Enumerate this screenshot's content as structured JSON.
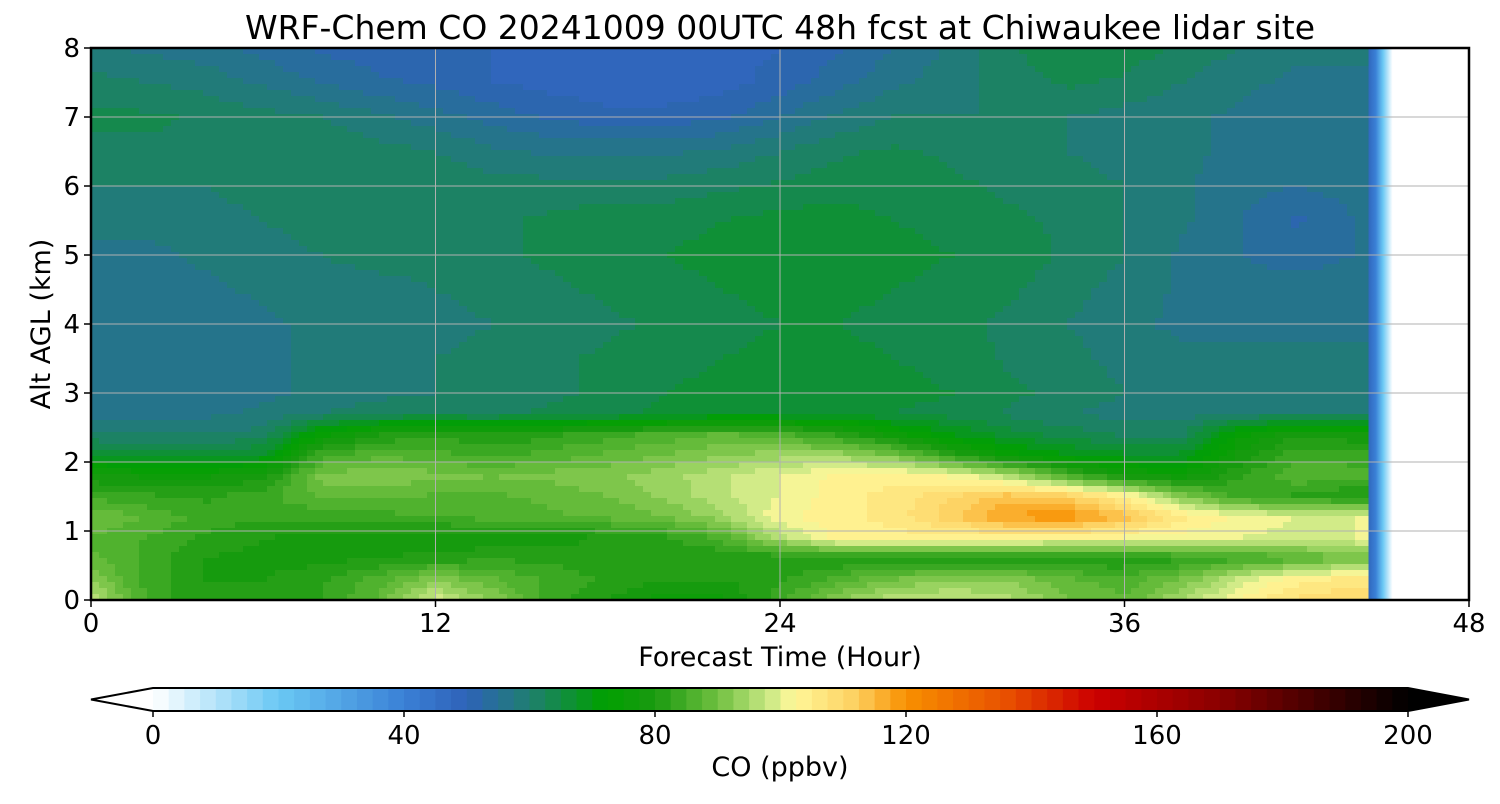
{
  "chart_data": {
    "type": "heatmap",
    "title": "WRF-Chem CO  20241009 00UTC 48h fcst at Chiwaukee lidar site",
    "xlabel": "Forecast Time (Hour)",
    "ylabel": "Alt AGL (km)",
    "xlim": [
      0,
      48
    ],
    "ylim": [
      0,
      8
    ],
    "xticks": [
      0,
      12,
      24,
      36,
      48
    ],
    "yticks": [
      0,
      1,
      2,
      3,
      4,
      5,
      6,
      7,
      8
    ],
    "grid": true,
    "data_end_hour": 44.5,
    "colorbar": {
      "label": "CO  (ppbv)",
      "range": [
        0,
        200
      ],
      "ticks": [
        0,
        40,
        80,
        120,
        160,
        200
      ],
      "extend": "both",
      "orientation": "horizontal",
      "position": "bottom",
      "stops": [
        {
          "v": 0,
          "color": "#ffffff"
        },
        {
          "v": 20,
          "color": "#6ac8f4"
        },
        {
          "v": 40,
          "color": "#3a80d6"
        },
        {
          "v": 50,
          "color": "#2e62b8"
        },
        {
          "v": 60,
          "color": "#1f7f70"
        },
        {
          "v": 72,
          "color": "#00a000"
        },
        {
          "v": 80,
          "color": "#1a9a10"
        },
        {
          "v": 90,
          "color": "#70c040"
        },
        {
          "v": 98,
          "color": "#c8e884"
        },
        {
          "v": 102,
          "color": "#fff89a"
        },
        {
          "v": 112,
          "color": "#fdd060"
        },
        {
          "v": 120,
          "color": "#f89000"
        },
        {
          "v": 136,
          "color": "#e85000"
        },
        {
          "v": 150,
          "color": "#cc0000"
        },
        {
          "v": 170,
          "color": "#8a0000"
        },
        {
          "v": 200,
          "color": "#000000"
        }
      ]
    },
    "x": [
      0,
      2,
      4,
      6,
      8,
      10,
      12,
      14,
      16,
      18,
      20,
      22,
      24,
      26,
      28,
      30,
      32,
      34,
      36,
      38,
      40,
      42,
      44
    ],
    "y": [
      0,
      0.3,
      0.6,
      0.9,
      1.2,
      1.5,
      1.8,
      2.1,
      2.4,
      2.7,
      3.0,
      3.5,
      4.0,
      4.5,
      5.0,
      5.5,
      6.0,
      6.5,
      7.0,
      7.5,
      8.0
    ],
    "z": [
      [
        97,
        84,
        80,
        80,
        82,
        88,
        99,
        92,
        84,
        80,
        76,
        77,
        84,
        92,
        97,
        98,
        96,
        90,
        88,
        95,
        103,
        108,
        110
      ],
      [
        92,
        84,
        80,
        80,
        82,
        86,
        92,
        88,
        84,
        82,
        80,
        80,
        82,
        86,
        90,
        92,
        92,
        88,
        86,
        90,
        98,
        104,
        106
      ],
      [
        88,
        84,
        80,
        79,
        79,
        80,
        81,
        82,
        82,
        81,
        80,
        80,
        80,
        80,
        80,
        80,
        80,
        79,
        80,
        82,
        84,
        86,
        90
      ],
      [
        87,
        85,
        82,
        80,
        79,
        78,
        78,
        78,
        79,
        80,
        82,
        86,
        96,
        104,
        104,
        104,
        104,
        103,
        102,
        101,
        100,
        99,
        100
      ],
      [
        90,
        87,
        84,
        83,
        83,
        84,
        85,
        86,
        87,
        88,
        90,
        94,
        102,
        104,
        106,
        112,
        118,
        120,
        114,
        106,
        102,
        100,
        100
      ],
      [
        84,
        83,
        82,
        84,
        88,
        88,
        87,
        87,
        88,
        90,
        93,
        97,
        100,
        104,
        106,
        110,
        114,
        112,
        104,
        92,
        84,
        82,
        80
      ],
      [
        78,
        77,
        77,
        79,
        91,
        92,
        91,
        90,
        91,
        92,
        94,
        97,
        100,
        103,
        104,
        102,
        96,
        86,
        78,
        76,
        82,
        87,
        86
      ],
      [
        68,
        67,
        66,
        68,
        84,
        87,
        86,
        84,
        86,
        88,
        90,
        92,
        94,
        94,
        90,
        82,
        74,
        70,
        68,
        68,
        78,
        84,
        84
      ],
      [
        60,
        60,
        60,
        61,
        74,
        80,
        82,
        80,
        82,
        84,
        86,
        88,
        86,
        82,
        76,
        70,
        66,
        64,
        62,
        62,
        74,
        80,
        78
      ],
      [
        56,
        56,
        57,
        58,
        60,
        62,
        62,
        62,
        63,
        64,
        66,
        67,
        67,
        67,
        65,
        64,
        62,
        60,
        59,
        59,
        60,
        60,
        60
      ],
      [
        55,
        55,
        56,
        57,
        58,
        59,
        60,
        61,
        62,
        63,
        65,
        66,
        67,
        67,
        66,
        65,
        63,
        62,
        60,
        59,
        58,
        58,
        58
      ],
      [
        55,
        55,
        56,
        57,
        58,
        59,
        60,
        61,
        62,
        63,
        64,
        65,
        66,
        66,
        65,
        64,
        62,
        61,
        59,
        58,
        58,
        58,
        58
      ],
      [
        55,
        55,
        56,
        57,
        58,
        58,
        59,
        60,
        61,
        62,
        63,
        64,
        65,
        65,
        64,
        63,
        62,
        60,
        58,
        57,
        57,
        57,
        57
      ],
      [
        56,
        56,
        57,
        58,
        59,
        59,
        60,
        61,
        62,
        63,
        64,
        65,
        66,
        66,
        65,
        64,
        63,
        61,
        59,
        57,
        56,
        56,
        56
      ],
      [
        57,
        57,
        58,
        59,
        60,
        61,
        61,
        62,
        63,
        64,
        65,
        66,
        67,
        67,
        66,
        65,
        64,
        62,
        60,
        57,
        55,
        54,
        55
      ],
      [
        58,
        58,
        59,
        60,
        61,
        62,
        62,
        62,
        63,
        64,
        64,
        65,
        66,
        66,
        65,
        64,
        63,
        62,
        60,
        58,
        55,
        52,
        55
      ],
      [
        60,
        60,
        60,
        61,
        62,
        62,
        62,
        61,
        61,
        61,
        61,
        62,
        63,
        64,
        64,
        63,
        62,
        61,
        60,
        58,
        56,
        55,
        56
      ],
      [
        62,
        62,
        62,
        62,
        62,
        61,
        60,
        58,
        57,
        57,
        57,
        58,
        60,
        62,
        63,
        62,
        61,
        60,
        59,
        58,
        57,
        56,
        57
      ],
      [
        63,
        63,
        62,
        61,
        60,
        58,
        56,
        54,
        52,
        51,
        51,
        52,
        55,
        58,
        60,
        60,
        60,
        60,
        59,
        58,
        57,
        56,
        57
      ],
      [
        61,
        60,
        59,
        57,
        55,
        53,
        52,
        50,
        49,
        48,
        48,
        49,
        51,
        54,
        57,
        59,
        61,
        63,
        62,
        60,
        58,
        57,
        57
      ],
      [
        58,
        57,
        56,
        54,
        52,
        51,
        50,
        50,
        49,
        48,
        48,
        49,
        50,
        52,
        55,
        58,
        62,
        65,
        64,
        62,
        60,
        58,
        58
      ]
    ]
  }
}
